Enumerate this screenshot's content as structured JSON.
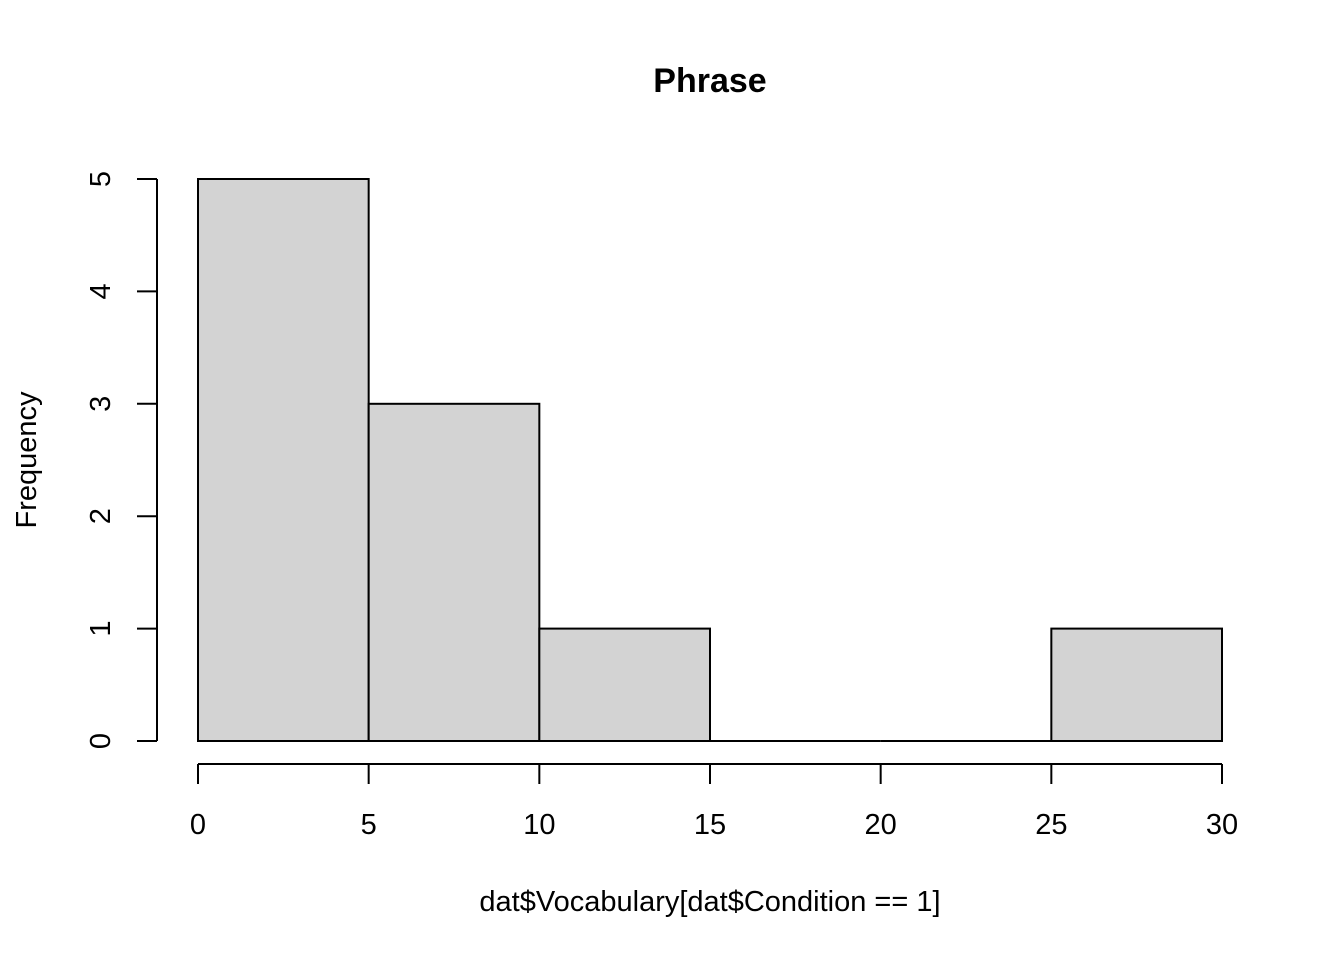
{
  "chart_data": {
    "type": "bar",
    "title": "Phrase",
    "xlabel": "dat$Vocabulary[dat$Condition == 1]",
    "ylabel": "Frequency",
    "bins": [
      {
        "x0": 0,
        "x1": 5,
        "count": 5
      },
      {
        "x0": 5,
        "x1": 10,
        "count": 3
      },
      {
        "x0": 10,
        "x1": 15,
        "count": 1
      },
      {
        "x0": 15,
        "x1": 20,
        "count": 0
      },
      {
        "x0": 20,
        "x1": 25,
        "count": 0
      },
      {
        "x0": 25,
        "x1": 30,
        "count": 1
      }
    ],
    "xlim": [
      0,
      30
    ],
    "ylim": [
      0,
      5
    ],
    "x_ticks": [
      "0",
      "5",
      "10",
      "15",
      "20",
      "25",
      "30"
    ],
    "y_ticks": [
      "0",
      "1",
      "2",
      "3",
      "4",
      "5"
    ],
    "grid": false,
    "bar_fill": "#d3d3d3",
    "bar_stroke": "#000000"
  }
}
